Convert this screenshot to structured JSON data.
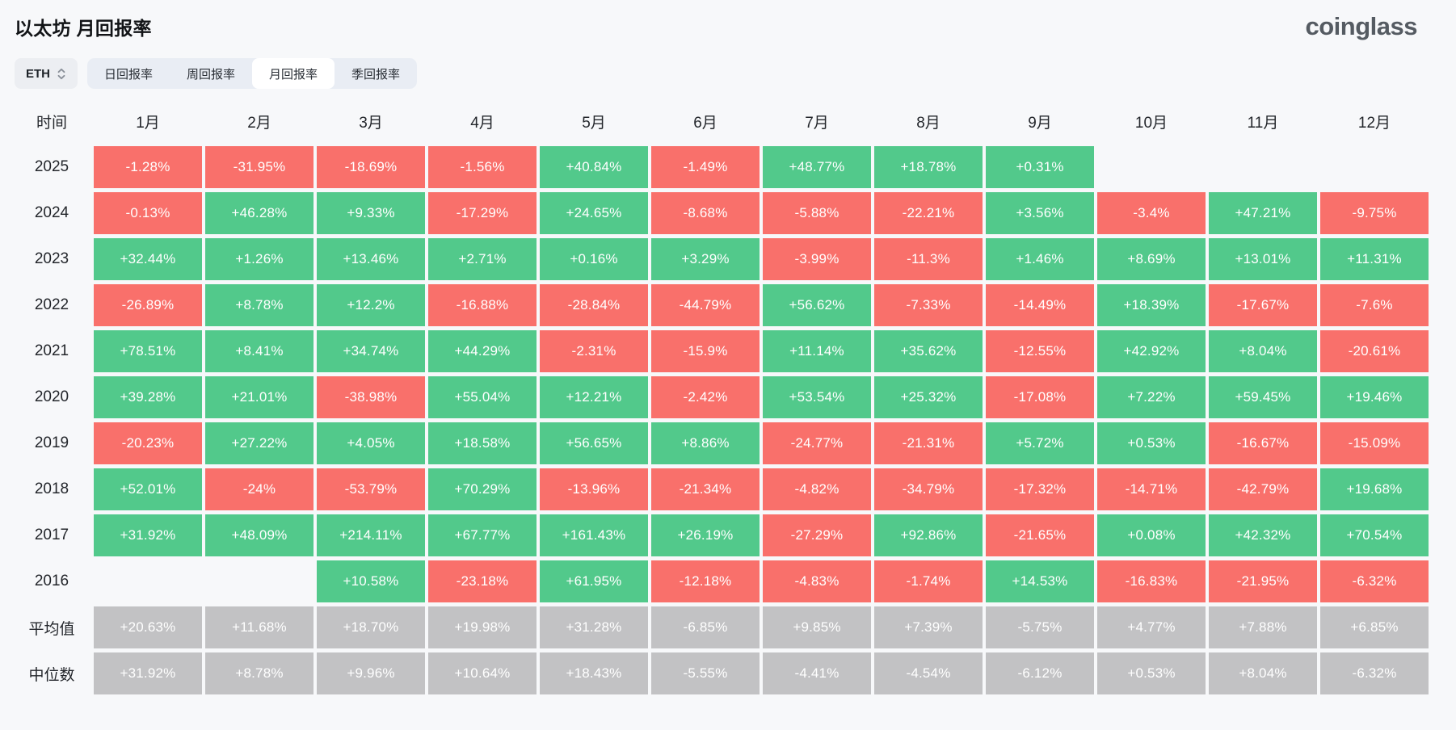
{
  "header": {
    "title": "以太坊 月回报率",
    "logo": "coinglass"
  },
  "controls": {
    "symbol": "ETH",
    "tabs": [
      {
        "id": "daily",
        "label": "日回报率",
        "active": false
      },
      {
        "id": "weekly",
        "label": "周回报率",
        "active": false
      },
      {
        "id": "monthly",
        "label": "月回报率",
        "active": true
      },
      {
        "id": "quarterly",
        "label": "季回报率",
        "active": false
      }
    ]
  },
  "colors": {
    "positive": "#52c98b",
    "negative": "#f9706b",
    "summary": "#c2c2c4"
  },
  "table": {
    "time_header": "时间",
    "months": [
      "1月",
      "2月",
      "3月",
      "4月",
      "5月",
      "6月",
      "7月",
      "8月",
      "9月",
      "10月",
      "11月",
      "12月"
    ],
    "rows": [
      {
        "label": "2025",
        "type": "year",
        "cells": [
          {
            "v": "-1.28%",
            "s": "neg"
          },
          {
            "v": "-31.95%",
            "s": "neg"
          },
          {
            "v": "-18.69%",
            "s": "neg"
          },
          {
            "v": "-1.56%",
            "s": "neg"
          },
          {
            "v": "+40.84%",
            "s": "pos"
          },
          {
            "v": "-1.49%",
            "s": "neg"
          },
          {
            "v": "+48.77%",
            "s": "pos"
          },
          {
            "v": "+18.78%",
            "s": "pos"
          },
          {
            "v": "+0.31%",
            "s": "pos"
          },
          null,
          null,
          null
        ]
      },
      {
        "label": "2024",
        "type": "year",
        "cells": [
          {
            "v": "-0.13%",
            "s": "neg"
          },
          {
            "v": "+46.28%",
            "s": "pos"
          },
          {
            "v": "+9.33%",
            "s": "pos"
          },
          {
            "v": "-17.29%",
            "s": "neg"
          },
          {
            "v": "+24.65%",
            "s": "pos"
          },
          {
            "v": "-8.68%",
            "s": "neg"
          },
          {
            "v": "-5.88%",
            "s": "neg"
          },
          {
            "v": "-22.21%",
            "s": "neg"
          },
          {
            "v": "+3.56%",
            "s": "pos"
          },
          {
            "v": "-3.4%",
            "s": "neg"
          },
          {
            "v": "+47.21%",
            "s": "pos"
          },
          {
            "v": "-9.75%",
            "s": "neg"
          }
        ]
      },
      {
        "label": "2023",
        "type": "year",
        "cells": [
          {
            "v": "+32.44%",
            "s": "pos"
          },
          {
            "v": "+1.26%",
            "s": "pos"
          },
          {
            "v": "+13.46%",
            "s": "pos"
          },
          {
            "v": "+2.71%",
            "s": "pos"
          },
          {
            "v": "+0.16%",
            "s": "pos"
          },
          {
            "v": "+3.29%",
            "s": "pos"
          },
          {
            "v": "-3.99%",
            "s": "neg"
          },
          {
            "v": "-11.3%",
            "s": "neg"
          },
          {
            "v": "+1.46%",
            "s": "pos"
          },
          {
            "v": "+8.69%",
            "s": "pos"
          },
          {
            "v": "+13.01%",
            "s": "pos"
          },
          {
            "v": "+11.31%",
            "s": "pos"
          }
        ]
      },
      {
        "label": "2022",
        "type": "year",
        "cells": [
          {
            "v": "-26.89%",
            "s": "neg"
          },
          {
            "v": "+8.78%",
            "s": "pos"
          },
          {
            "v": "+12.2%",
            "s": "pos"
          },
          {
            "v": "-16.88%",
            "s": "neg"
          },
          {
            "v": "-28.84%",
            "s": "neg"
          },
          {
            "v": "-44.79%",
            "s": "neg"
          },
          {
            "v": "+56.62%",
            "s": "pos"
          },
          {
            "v": "-7.33%",
            "s": "neg"
          },
          {
            "v": "-14.49%",
            "s": "neg"
          },
          {
            "v": "+18.39%",
            "s": "pos"
          },
          {
            "v": "-17.67%",
            "s": "neg"
          },
          {
            "v": "-7.6%",
            "s": "neg"
          }
        ]
      },
      {
        "label": "2021",
        "type": "year",
        "cells": [
          {
            "v": "+78.51%",
            "s": "pos"
          },
          {
            "v": "+8.41%",
            "s": "pos"
          },
          {
            "v": "+34.74%",
            "s": "pos"
          },
          {
            "v": "+44.29%",
            "s": "pos"
          },
          {
            "v": "-2.31%",
            "s": "neg"
          },
          {
            "v": "-15.9%",
            "s": "neg"
          },
          {
            "v": "+11.14%",
            "s": "pos"
          },
          {
            "v": "+35.62%",
            "s": "pos"
          },
          {
            "v": "-12.55%",
            "s": "neg"
          },
          {
            "v": "+42.92%",
            "s": "pos"
          },
          {
            "v": "+8.04%",
            "s": "pos"
          },
          {
            "v": "-20.61%",
            "s": "neg"
          }
        ]
      },
      {
        "label": "2020",
        "type": "year",
        "cells": [
          {
            "v": "+39.28%",
            "s": "pos"
          },
          {
            "v": "+21.01%",
            "s": "pos"
          },
          {
            "v": "-38.98%",
            "s": "neg"
          },
          {
            "v": "+55.04%",
            "s": "pos"
          },
          {
            "v": "+12.21%",
            "s": "pos"
          },
          {
            "v": "-2.42%",
            "s": "neg"
          },
          {
            "v": "+53.54%",
            "s": "pos"
          },
          {
            "v": "+25.32%",
            "s": "pos"
          },
          {
            "v": "-17.08%",
            "s": "neg"
          },
          {
            "v": "+7.22%",
            "s": "pos"
          },
          {
            "v": "+59.45%",
            "s": "pos"
          },
          {
            "v": "+19.46%",
            "s": "pos"
          }
        ]
      },
      {
        "label": "2019",
        "type": "year",
        "cells": [
          {
            "v": "-20.23%",
            "s": "neg"
          },
          {
            "v": "+27.22%",
            "s": "pos"
          },
          {
            "v": "+4.05%",
            "s": "pos"
          },
          {
            "v": "+18.58%",
            "s": "pos"
          },
          {
            "v": "+56.65%",
            "s": "pos"
          },
          {
            "v": "+8.86%",
            "s": "pos"
          },
          {
            "v": "-24.77%",
            "s": "neg"
          },
          {
            "v": "-21.31%",
            "s": "neg"
          },
          {
            "v": "+5.72%",
            "s": "pos"
          },
          {
            "v": "+0.53%",
            "s": "pos"
          },
          {
            "v": "-16.67%",
            "s": "neg"
          },
          {
            "v": "-15.09%",
            "s": "neg"
          }
        ]
      },
      {
        "label": "2018",
        "type": "year",
        "cells": [
          {
            "v": "+52.01%",
            "s": "pos"
          },
          {
            "v": "-24%",
            "s": "neg"
          },
          {
            "v": "-53.79%",
            "s": "neg"
          },
          {
            "v": "+70.29%",
            "s": "pos"
          },
          {
            "v": "-13.96%",
            "s": "neg"
          },
          {
            "v": "-21.34%",
            "s": "neg"
          },
          {
            "v": "-4.82%",
            "s": "neg"
          },
          {
            "v": "-34.79%",
            "s": "neg"
          },
          {
            "v": "-17.32%",
            "s": "neg"
          },
          {
            "v": "-14.71%",
            "s": "neg"
          },
          {
            "v": "-42.79%",
            "s": "neg"
          },
          {
            "v": "+19.68%",
            "s": "pos"
          }
        ]
      },
      {
        "label": "2017",
        "type": "year",
        "cells": [
          {
            "v": "+31.92%",
            "s": "pos"
          },
          {
            "v": "+48.09%",
            "s": "pos"
          },
          {
            "v": "+214.11%",
            "s": "pos"
          },
          {
            "v": "+67.77%",
            "s": "pos"
          },
          {
            "v": "+161.43%",
            "s": "pos"
          },
          {
            "v": "+26.19%",
            "s": "pos"
          },
          {
            "v": "-27.29%",
            "s": "neg"
          },
          {
            "v": "+92.86%",
            "s": "pos"
          },
          {
            "v": "-21.65%",
            "s": "neg"
          },
          {
            "v": "+0.08%",
            "s": "pos"
          },
          {
            "v": "+42.32%",
            "s": "pos"
          },
          {
            "v": "+70.54%",
            "s": "pos"
          }
        ]
      },
      {
        "label": "2016",
        "type": "year",
        "cells": [
          null,
          null,
          {
            "v": "+10.58%",
            "s": "pos"
          },
          {
            "v": "-23.18%",
            "s": "neg"
          },
          {
            "v": "+61.95%",
            "s": "pos"
          },
          {
            "v": "-12.18%",
            "s": "neg"
          },
          {
            "v": "-4.83%",
            "s": "neg"
          },
          {
            "v": "-1.74%",
            "s": "neg"
          },
          {
            "v": "+14.53%",
            "s": "pos"
          },
          {
            "v": "-16.83%",
            "s": "neg"
          },
          {
            "v": "-21.95%",
            "s": "neg"
          },
          {
            "v": "-6.32%",
            "s": "neg"
          }
        ]
      },
      {
        "label": "平均值",
        "type": "summary",
        "cells": [
          {
            "v": "+20.63%",
            "s": "sum"
          },
          {
            "v": "+11.68%",
            "s": "sum"
          },
          {
            "v": "+18.70%",
            "s": "sum"
          },
          {
            "v": "+19.98%",
            "s": "sum"
          },
          {
            "v": "+31.28%",
            "s": "sum"
          },
          {
            "v": "-6.85%",
            "s": "sum"
          },
          {
            "v": "+9.85%",
            "s": "sum"
          },
          {
            "v": "+7.39%",
            "s": "sum"
          },
          {
            "v": "-5.75%",
            "s": "sum"
          },
          {
            "v": "+4.77%",
            "s": "sum"
          },
          {
            "v": "+7.88%",
            "s": "sum"
          },
          {
            "v": "+6.85%",
            "s": "sum"
          }
        ]
      },
      {
        "label": "中位数",
        "type": "summary",
        "cells": [
          {
            "v": "+31.92%",
            "s": "sum"
          },
          {
            "v": "+8.78%",
            "s": "sum"
          },
          {
            "v": "+9.96%",
            "s": "sum"
          },
          {
            "v": "+10.64%",
            "s": "sum"
          },
          {
            "v": "+18.43%",
            "s": "sum"
          },
          {
            "v": "-5.55%",
            "s": "sum"
          },
          {
            "v": "-4.41%",
            "s": "sum"
          },
          {
            "v": "-4.54%",
            "s": "sum"
          },
          {
            "v": "-6.12%",
            "s": "sum"
          },
          {
            "v": "+0.53%",
            "s": "sum"
          },
          {
            "v": "+8.04%",
            "s": "sum"
          },
          {
            "v": "-6.32%",
            "s": "sum"
          }
        ]
      }
    ]
  }
}
